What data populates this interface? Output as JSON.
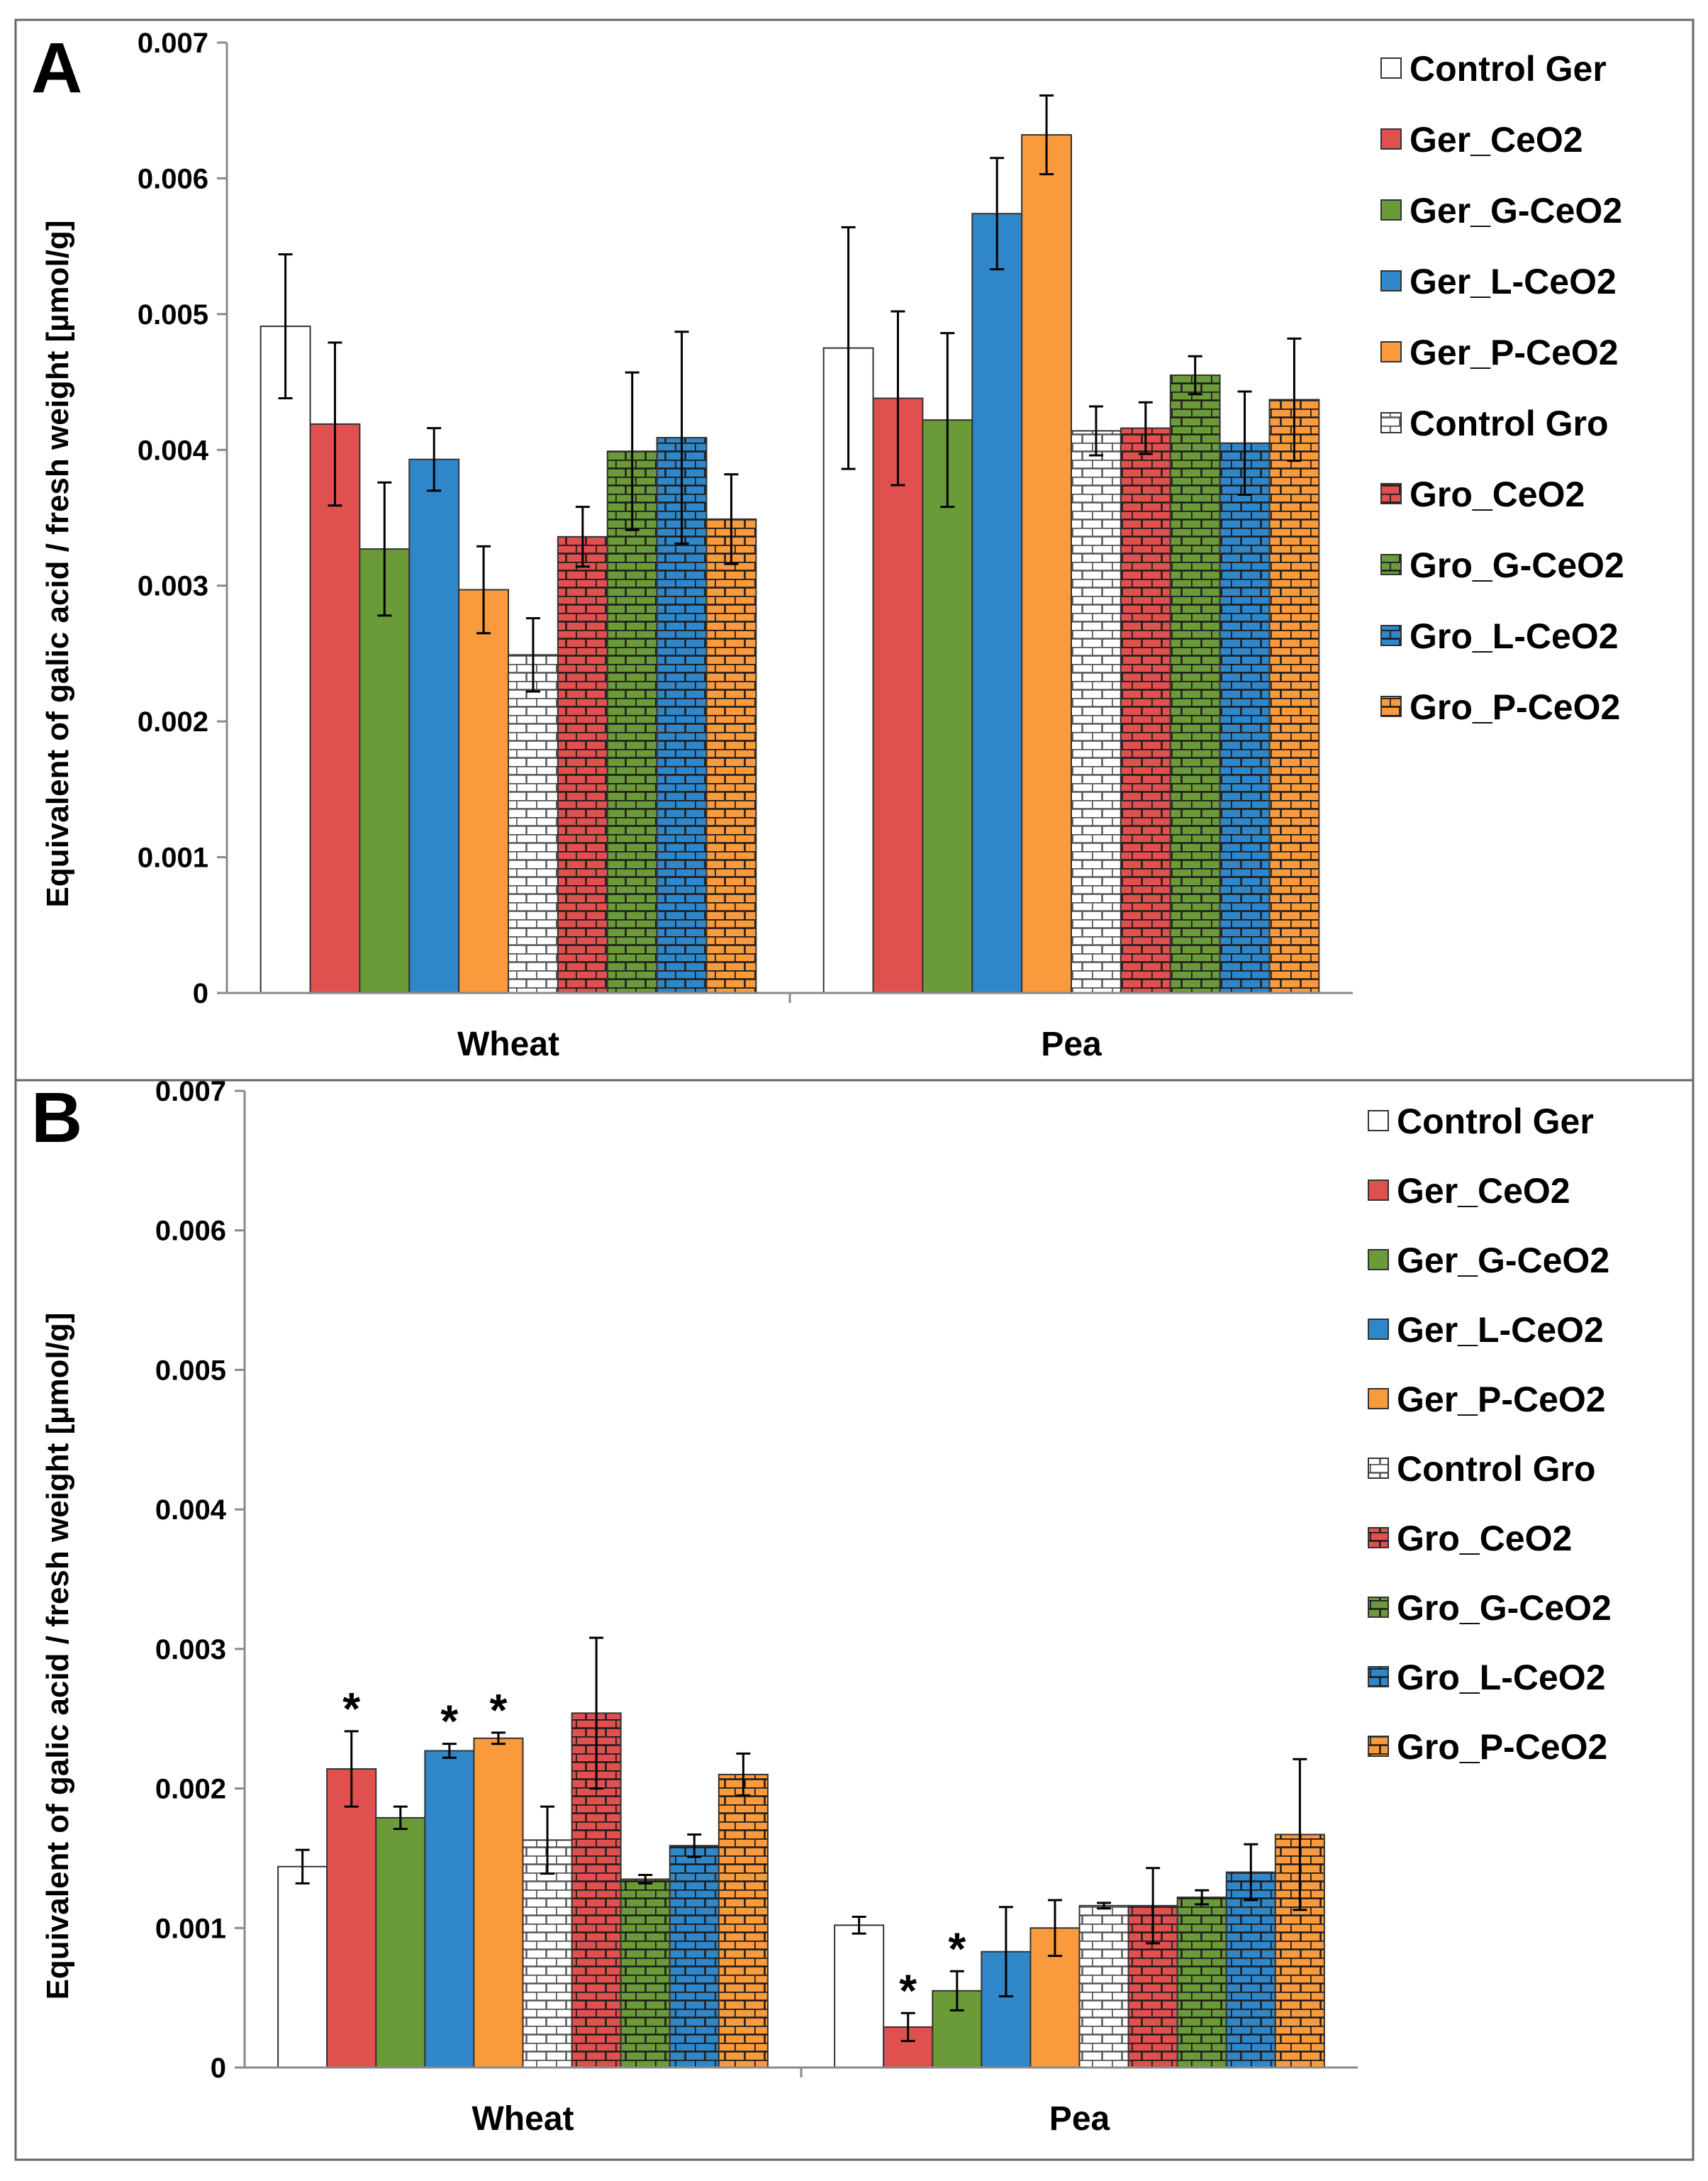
{
  "colors": {
    "white": "#ffffff",
    "red": "#e0504f",
    "green": "#6b9a38",
    "blue": "#2f86c8",
    "orange": "#f99a3d",
    "outline": "#333333",
    "frame": "#666666",
    "axis": "#8a8a8a"
  },
  "chart_data": [
    {
      "type": "bar",
      "panel_label": "A",
      "categories": [
        "Wheat",
        "Pea"
      ],
      "ylabel": "Equivalent of galic acid / fresh weight [µmol/g]",
      "xlabel": "",
      "ylim": [
        0,
        0.007
      ],
      "ytick_labels": [
        "0",
        "0.001",
        "0.002",
        "0.003",
        "0.004",
        "0.005",
        "0.006",
        "0.007"
      ],
      "legend_position": "right",
      "series": [
        {
          "name": "Control Ger",
          "color": "white",
          "pattern": "none",
          "values": [
            0.00491,
            0.00475
          ],
          "errors": [
            0.00053,
            0.00089
          ],
          "sig": [
            false,
            false
          ]
        },
        {
          "name": "Ger_CeO2",
          "color": "red",
          "pattern": "none",
          "values": [
            0.00419,
            0.00438
          ],
          "errors": [
            0.0006,
            0.00064
          ],
          "sig": [
            false,
            false
          ]
        },
        {
          "name": "Ger_G-CeO2",
          "color": "green",
          "pattern": "none",
          "values": [
            0.00327,
            0.00422
          ],
          "errors": [
            0.00049,
            0.00064
          ],
          "sig": [
            false,
            false
          ]
        },
        {
          "name": "Ger_L-CeO2",
          "color": "blue",
          "pattern": "none",
          "values": [
            0.00393,
            0.00574
          ],
          "errors": [
            0.00023,
            0.00041
          ],
          "sig": [
            false,
            false
          ]
        },
        {
          "name": "Ger_P-CeO2",
          "color": "orange",
          "pattern": "none",
          "values": [
            0.00297,
            0.00632
          ],
          "errors": [
            0.00032,
            0.00029
          ],
          "sig": [
            false,
            false
          ]
        },
        {
          "name": "Control Gro",
          "color": "white",
          "pattern": "brick",
          "values": [
            0.00249,
            0.00414
          ],
          "errors": [
            0.00027,
            0.00018
          ],
          "sig": [
            false,
            false
          ]
        },
        {
          "name": "Gro_CeO2",
          "color": "red",
          "pattern": "brick",
          "values": [
            0.00336,
            0.00416
          ],
          "errors": [
            0.00022,
            0.00019
          ],
          "sig": [
            false,
            false
          ]
        },
        {
          "name": "Gro_G-CeO2",
          "color": "green",
          "pattern": "brick",
          "values": [
            0.00399,
            0.00455
          ],
          "errors": [
            0.00058,
            0.00014
          ],
          "sig": [
            false,
            false
          ]
        },
        {
          "name": "Gro_L-CeO2",
          "color": "blue",
          "pattern": "brick",
          "values": [
            0.00409,
            0.00405
          ],
          "errors": [
            0.00078,
            0.00038
          ],
          "sig": [
            false,
            false
          ]
        },
        {
          "name": "Gro_P-CeO2",
          "color": "orange",
          "pattern": "brick",
          "values": [
            0.00349,
            0.00437
          ],
          "errors": [
            0.00033,
            0.00045
          ],
          "sig": [
            false,
            false
          ]
        }
      ]
    },
    {
      "type": "bar",
      "panel_label": "B",
      "categories": [
        "Wheat",
        "Pea"
      ],
      "ylabel": "Equivalent of galic acid / fresh weight [µmol/g]",
      "xlabel": "",
      "ylim": [
        0,
        0.007
      ],
      "ytick_labels": [
        "0",
        "0.001",
        "0.002",
        "0.003",
        "0.004",
        "0.005",
        "0.006",
        "0.007"
      ],
      "legend_position": "right",
      "series": [
        {
          "name": "Control Ger",
          "color": "white",
          "pattern": "none",
          "values": [
            0.00144,
            0.00102
          ],
          "errors": [
            0.00012,
            6e-05
          ],
          "sig": [
            false,
            false
          ]
        },
        {
          "name": "Ger_CeO2",
          "color": "red",
          "pattern": "none",
          "values": [
            0.00214,
            0.00029
          ],
          "errors": [
            0.00027,
            0.0001
          ],
          "sig": [
            true,
            true
          ]
        },
        {
          "name": "Ger_G-CeO2",
          "color": "green",
          "pattern": "none",
          "values": [
            0.00179,
            0.00055
          ],
          "errors": [
            8e-05,
            0.00014
          ],
          "sig": [
            false,
            true
          ]
        },
        {
          "name": "Ger_L-CeO2",
          "color": "blue",
          "pattern": "none",
          "values": [
            0.00227,
            0.00083
          ],
          "errors": [
            5e-05,
            0.00032
          ],
          "sig": [
            true,
            false
          ]
        },
        {
          "name": "Ger_P-CeO2",
          "color": "orange",
          "pattern": "none",
          "values": [
            0.00236,
            0.001
          ],
          "errors": [
            4e-05,
            0.0002
          ],
          "sig": [
            true,
            false
          ]
        },
        {
          "name": "Control Gro",
          "color": "white",
          "pattern": "brick",
          "values": [
            0.00163,
            0.00116
          ],
          "errors": [
            0.00024,
            2e-05
          ],
          "sig": [
            false,
            false
          ]
        },
        {
          "name": "Gro_CeO2",
          "color": "red",
          "pattern": "brick",
          "values": [
            0.00254,
            0.00116
          ],
          "errors": [
            0.00054,
            0.00027
          ],
          "sig": [
            false,
            false
          ]
        },
        {
          "name": "Gro_G-CeO2",
          "color": "green",
          "pattern": "brick",
          "values": [
            0.00135,
            0.00122
          ],
          "errors": [
            3e-05,
            5e-05
          ],
          "sig": [
            false,
            false
          ]
        },
        {
          "name": "Gro_L-CeO2",
          "color": "blue",
          "pattern": "brick",
          "values": [
            0.00159,
            0.0014
          ],
          "errors": [
            8e-05,
            0.0002
          ],
          "sig": [
            false,
            false
          ]
        },
        {
          "name": "Gro_P-CeO2",
          "color": "orange",
          "pattern": "brick",
          "values": [
            0.0021,
            0.00167
          ],
          "errors": [
            0.00015,
            0.00054
          ],
          "sig": [
            false,
            false
          ]
        }
      ],
      "significance_marker": "*"
    }
  ]
}
